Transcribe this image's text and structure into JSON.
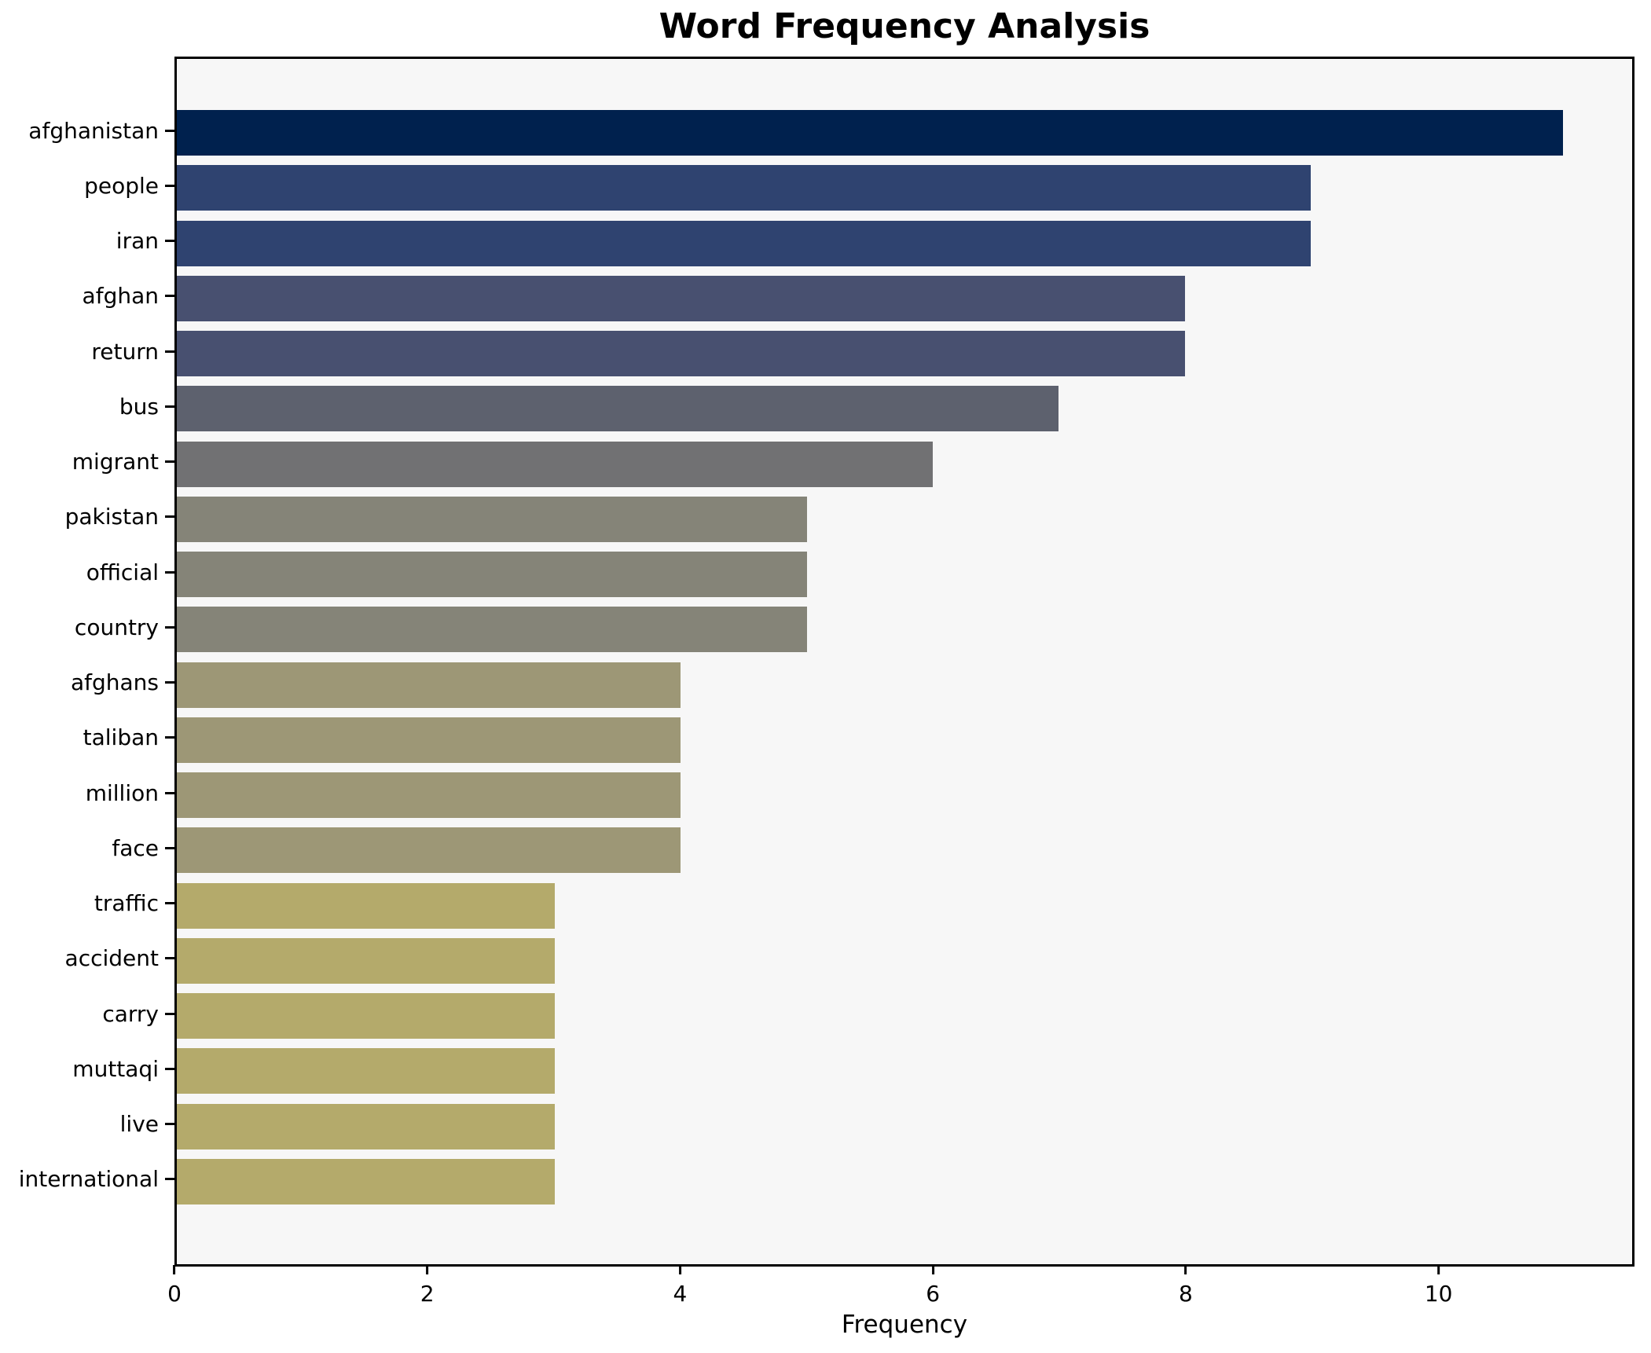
{
  "title": "Word Frequency Analysis",
  "axis": {
    "xlabel": "Frequency",
    "x_ticks": [
      0,
      2,
      4,
      6,
      8,
      10
    ]
  },
  "colors": {
    "figure_background": "#ffffff",
    "plot_background": "#f7f7f7",
    "spine": "#000000",
    "text": "#000000"
  },
  "chart_data": {
    "type": "bar",
    "orientation": "horizontal",
    "title": "Word Frequency Analysis",
    "xlabel": "Frequency",
    "ylabel": "",
    "categories": [
      "afghanistan",
      "people",
      "iran",
      "afghan",
      "return",
      "bus",
      "migrant",
      "pakistan",
      "official",
      "country",
      "afghans",
      "taliban",
      "million",
      "face",
      "traffic",
      "accident",
      "carry",
      "muttaqi",
      "live",
      "international"
    ],
    "values": [
      11,
      9,
      9,
      8,
      8,
      7,
      6,
      5,
      5,
      5,
      4,
      4,
      4,
      4,
      3,
      3,
      3,
      3,
      3,
      3
    ],
    "bar_colors": [
      "#00214e",
      "#2f4370",
      "#2f4370",
      "#485070",
      "#485070",
      "#5d616e",
      "#717173",
      "#858478",
      "#858478",
      "#858478",
      "#9d9776",
      "#9d9776",
      "#9d9776",
      "#9d9776",
      "#b4aa6b",
      "#b4aa6b",
      "#b4aa6b",
      "#b4aa6b",
      "#b4aa6b",
      "#b4aa6b"
    ],
    "x_ticks": [
      0,
      2,
      4,
      6,
      8,
      10
    ],
    "xlim": [
      0,
      11.55
    ],
    "grid": false,
    "legend": false,
    "colormap": "cividis"
  }
}
